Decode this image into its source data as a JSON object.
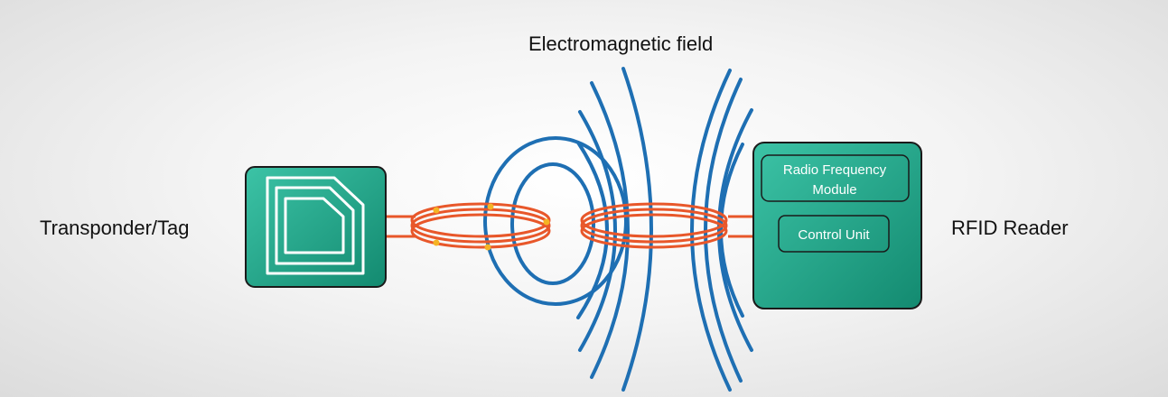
{
  "diagram": {
    "title": "Electromagnetic field",
    "tag_label": "Transponder/Tag",
    "reader_label": "RFID Reader",
    "reader_modules": {
      "rf_line1": "Radio Frequency",
      "rf_line2": "Module",
      "control": "Control Unit"
    }
  },
  "colors": {
    "teal": "#22a58c",
    "teal_dark": "#137a65",
    "field_blue": "#1e6fb3",
    "coil_orange": "#e8572a",
    "spark": "#f5b324"
  }
}
